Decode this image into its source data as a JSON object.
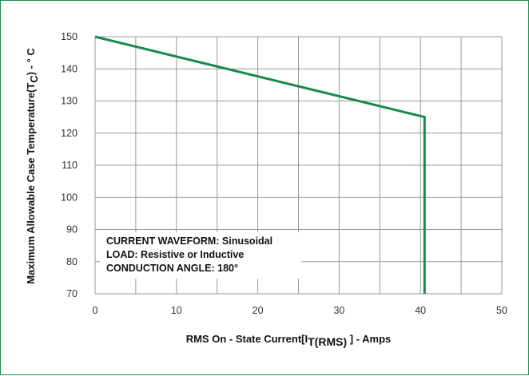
{
  "chart_data": {
    "type": "line",
    "title": "",
    "xlabel": "RMS On - State Current[I",
    "xlabel_sub": "T(RMS)",
    "xlabel_suffix": " ] - Amps",
    "ylabel": "Maximum Allowable  Case Temperature(T",
    "ylabel_sub": "C",
    "ylabel_suffix": ") - ° C",
    "xlim": [
      0,
      50
    ],
    "ylim": [
      70,
      150
    ],
    "x_ticks": [
      0,
      10,
      20,
      30,
      40,
      50
    ],
    "y_ticks": [
      70,
      80,
      90,
      100,
      110,
      120,
      130,
      140,
      150
    ],
    "x_grid_step": 5,
    "grid": true,
    "series": [
      {
        "color": "#1a8a4a",
        "points": [
          [
            0,
            150
          ],
          [
            40.5,
            125
          ],
          [
            40.5,
            70
          ]
        ]
      }
    ],
    "annotation_lines": [
      "CURRENT WAVEFORM: Sinusoidal",
      "LOAD: Resistive or Inductive",
      "CONDUCTION ANGLE: 180°"
    ]
  },
  "colors": {
    "border": "#1a8a4a",
    "line": "#1a8a4a",
    "grid": "#999999"
  }
}
